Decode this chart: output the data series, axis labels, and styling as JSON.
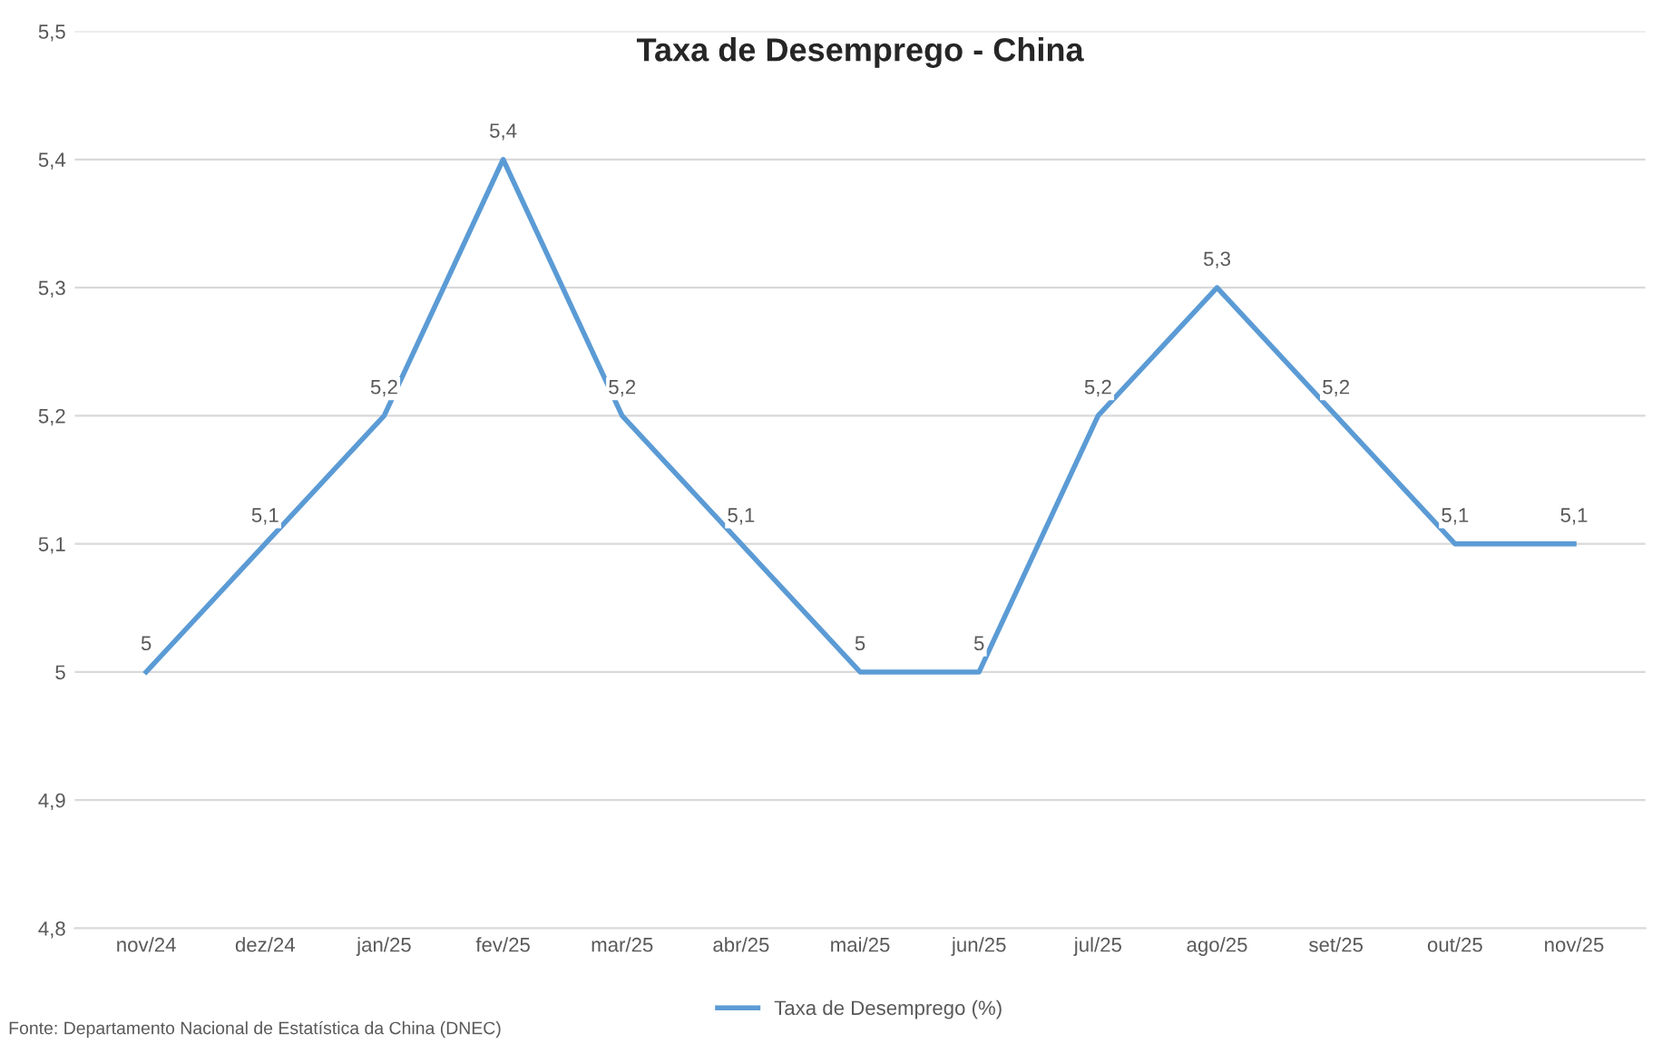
{
  "chart_data": {
    "type": "line",
    "title": "Taxa de Desemprego - China",
    "categories": [
      "nov/24",
      "dez/24",
      "jan/25",
      "fev/25",
      "mar/25",
      "abr/25",
      "mai/25",
      "jun/25",
      "jul/25",
      "ago/25",
      "set/25",
      "out/25",
      "nov/25"
    ],
    "series": [
      {
        "name": "Taxa de Desemprego (%)",
        "color": "#5b9bd5",
        "values": [
          5,
          5.1,
          5.2,
          5.4,
          5.2,
          5.1,
          5,
          5,
          5.2,
          5.3,
          5.2,
          5.1,
          5.1
        ]
      }
    ],
    "ylim": [
      4.8,
      5.5
    ],
    "yticks": [
      {
        "value": 4.8,
        "label": "4,8"
      },
      {
        "value": 4.9,
        "label": "4,9"
      },
      5,
      {
        "value": 5.1,
        "label": "5,1"
      },
      {
        "value": 5.2,
        "label": "5,2"
      },
      {
        "value": 5.3,
        "label": "5,3"
      },
      {
        "value": 5.4,
        "label": "5,4"
      },
      {
        "value": 5.5,
        "label": "5,5"
      }
    ],
    "value_labels": [
      "5",
      "5,1",
      "5,2",
      "5,4",
      "5,2",
      "5,1",
      "5",
      "5",
      "5,2",
      "5,3",
      "5,2",
      "5,1",
      "5,1"
    ],
    "grid": "y",
    "legend": "bottom",
    "marker": "none",
    "line_style": "solid",
    "annotations": [
      "Fonte: Departamento Nacional de Estatística da China (DNEC)"
    ]
  }
}
